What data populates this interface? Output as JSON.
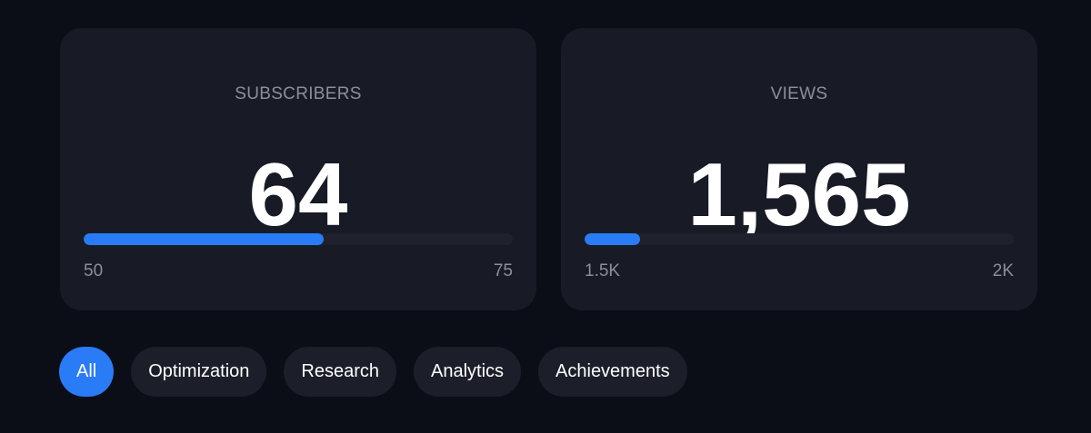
{
  "accent_color": "#2a7bf6",
  "stats": [
    {
      "label": "SUBSCRIBERS",
      "value": "64",
      "min_label": "50",
      "max_label": "75",
      "progress_fraction": 0.56
    },
    {
      "label": "VIEWS",
      "value": "1,565",
      "min_label": "1.5K",
      "max_label": "2K",
      "progress_fraction": 0.13
    }
  ],
  "filters": [
    {
      "label": "All",
      "active": true
    },
    {
      "label": "Optimization",
      "active": false
    },
    {
      "label": "Research",
      "active": false
    },
    {
      "label": "Analytics",
      "active": false
    },
    {
      "label": "Achievements",
      "active": false
    }
  ]
}
